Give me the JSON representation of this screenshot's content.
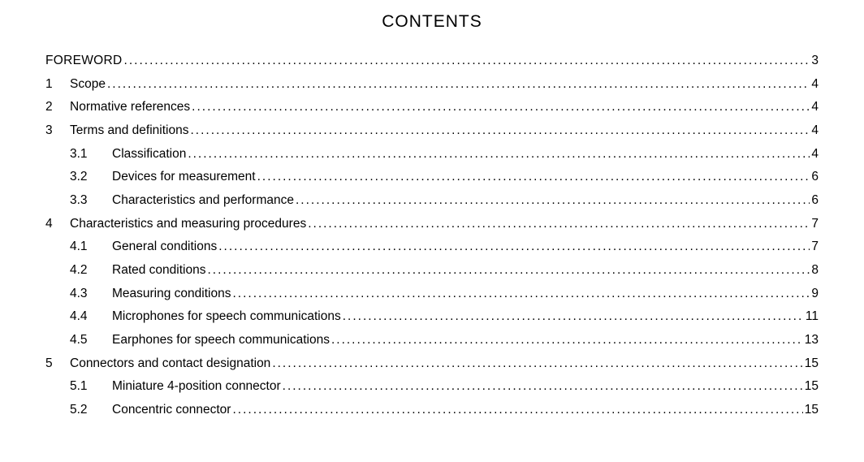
{
  "title": "CONTENTS",
  "text_color": "#000000",
  "background_color": "#ffffff",
  "title_fontsize": 21,
  "body_fontsize": 15.5,
  "entries": [
    {
      "level": 0,
      "num": "",
      "label": "FOREWORD",
      "page": "3"
    },
    {
      "level": 1,
      "num": "1",
      "label": "Scope",
      "page": "4"
    },
    {
      "level": 1,
      "num": "2",
      "label": "Normative references",
      "page": "4"
    },
    {
      "level": 1,
      "num": "3",
      "label": "Terms and definitions",
      "page": "4"
    },
    {
      "level": 2,
      "num": "3.1",
      "label": "Classification",
      "page": "4"
    },
    {
      "level": 2,
      "num": "3.2",
      "label": "Devices for measurement",
      "page": "6"
    },
    {
      "level": 2,
      "num": "3.3",
      "label": "Characteristics and performance",
      "page": "6"
    },
    {
      "level": 1,
      "num": "4",
      "label": "Characteristics and measuring procedures",
      "page": "7"
    },
    {
      "level": 2,
      "num": "4.1",
      "label": "General conditions",
      "page": "7"
    },
    {
      "level": 2,
      "num": "4.2",
      "label": "Rated conditions",
      "page": "8"
    },
    {
      "level": 2,
      "num": "4.3",
      "label": "Measuring conditions",
      "page": "9"
    },
    {
      "level": 2,
      "num": "4.4",
      "label": "Microphones for speech communications",
      "page": "11"
    },
    {
      "level": 2,
      "num": "4.5",
      "label": "Earphones for speech communications",
      "page": "13"
    },
    {
      "level": 1,
      "num": "5",
      "label": "Connectors and contact designation",
      "page": "15"
    },
    {
      "level": 2,
      "num": "5.1",
      "label": "Miniature 4-position connector",
      "page": "15"
    },
    {
      "level": 2,
      "num": "5.2",
      "label": "Concentric connector",
      "page": "15"
    }
  ]
}
